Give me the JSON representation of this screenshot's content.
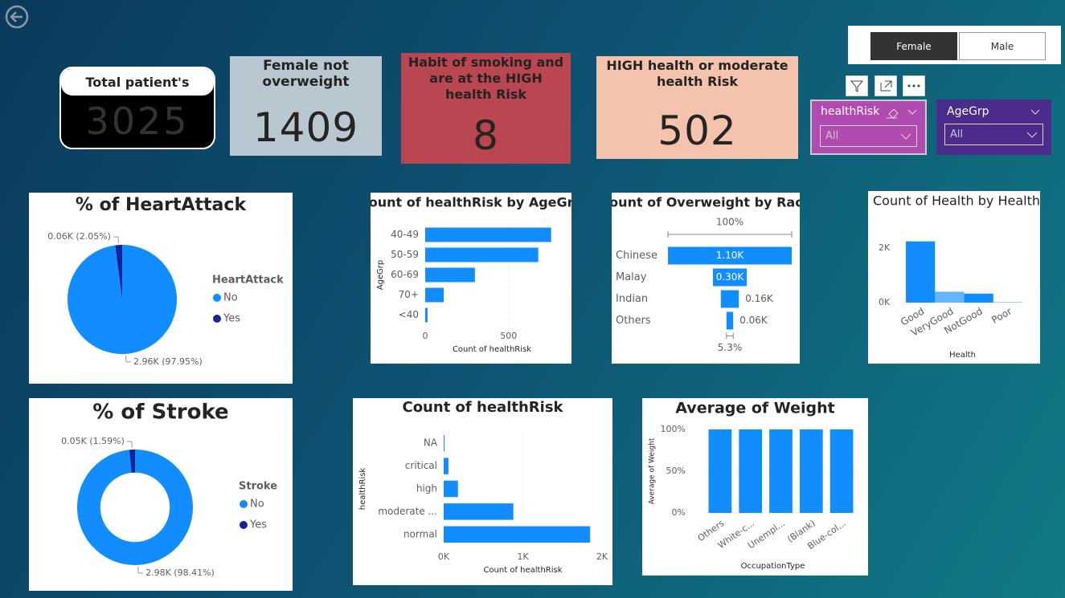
{
  "cards": [
    {
      "title": "Total patient's",
      "value": 3025
    },
    {
      "title": "Female not overweight",
      "value": 1409
    },
    {
      "title": "Habit of smoking and are at the HIGH health Risk",
      "value": 8
    },
    {
      "title": "HIGH health or moderate health Risk",
      "value": 502
    }
  ],
  "toggle": {
    "options": [
      "Female",
      "Male"
    ]
  },
  "slicers": [
    {
      "title": "healthRisk",
      "value": "All"
    },
    {
      "title": "AgeGrp",
      "value": "All"
    }
  ],
  "chart_data": [
    {
      "type": "pie",
      "title": "% of HeartAttack",
      "legend_title": "HeartAttack",
      "categories": [
        "No",
        "Yes"
      ],
      "values": [
        97.95,
        2.05
      ],
      "value_labels": [
        "2.96K (97.95%)",
        "0.06K (2.05%)"
      ],
      "colors": [
        "#118dff",
        "#12239e"
      ],
      "legend": "right"
    },
    {
      "type": "donut",
      "title": "% of Stroke",
      "legend_title": "Stroke",
      "categories": [
        "No",
        "Yes"
      ],
      "values": [
        98.41,
        1.59
      ],
      "value_labels": [
        "2.98K (98.41%)",
        "0.05K (1.59%)"
      ],
      "colors": [
        "#118dff",
        "#12239e"
      ],
      "legend": "right"
    },
    {
      "type": "hbar",
      "title": "Count of healthRisk by AgeGrp",
      "categories": [
        "40-49",
        "50-59",
        "60-69",
        "70+",
        "<40"
      ],
      "values": [
        755,
        678,
        298,
        111,
        14
      ],
      "color": "#118dff",
      "xlim": [
        0,
        800
      ],
      "xticks": [
        0,
        500
      ],
      "xlabel": "Count of healthRisk",
      "ylabel": "AgeGrp",
      "grid": true
    },
    {
      "type": "funnel",
      "title": "Count of Overweight by Race",
      "categories": [
        "Chinese",
        "Malay",
        "Indian",
        "Others"
      ],
      "values": [
        1100,
        300,
        160,
        60
      ],
      "value_labels": [
        "1.10K",
        "0.30K",
        "0.16K",
        "0.06K"
      ],
      "top_label": "100%",
      "bottom_label": "5.3%",
      "color": "#118dff"
    },
    {
      "type": "area",
      "title": "Count of Health by Health",
      "categories": [
        "Good",
        "VeryGood",
        "NotGood",
        "Poor"
      ],
      "values": [
        2250,
        400,
        330,
        20
      ],
      "color": "#118dff",
      "ylim": [
        0,
        2300
      ],
      "yticks": [
        {
          "value": 0,
          "label": "0K"
        },
        {
          "value": 2000,
          "label": "2K"
        }
      ],
      "xlabel": "Health"
    },
    {
      "type": "hbar",
      "title": "Count of healthRisk",
      "categories": [
        "NA",
        "critical",
        "high",
        "moderate ...",
        "normal"
      ],
      "values": [
        10,
        60,
        180,
        880,
        1850
      ],
      "color": "#118dff",
      "xlim": [
        0,
        2000
      ],
      "xticks": [
        {
          "value": 0,
          "label": "0K"
        },
        {
          "value": 1000,
          "label": "1K"
        },
        {
          "value": 2000,
          "label": "2K"
        }
      ],
      "xlabel": "Count of healthRisk",
      "ylabel": "healthRisk",
      "grid": true
    },
    {
      "type": "column",
      "title": "Average of Weight",
      "categories": [
        "Others",
        "White-c...",
        "Unempl...",
        "(Blank)",
        "Blue-col..."
      ],
      "values": [
        100,
        100,
        100,
        100,
        100
      ],
      "color": "#118dff",
      "ylim": [
        0,
        100
      ],
      "yticks": [
        {
          "value": 0,
          "label": "0%"
        },
        {
          "value": 50,
          "label": "50%"
        },
        {
          "value": 100,
          "label": "100%"
        }
      ],
      "xlabel": "OccupationType",
      "ylabel": "Average of Weight",
      "grid": true
    }
  ]
}
